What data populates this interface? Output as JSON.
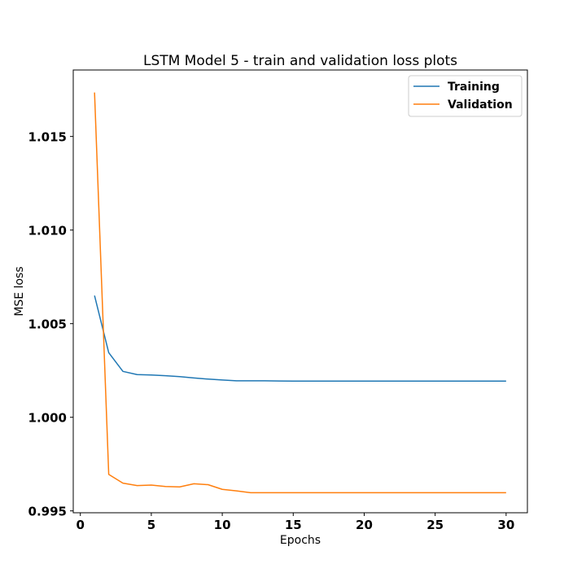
{
  "chart_data": {
    "type": "line",
    "title": "LSTM Model 5 - train and validation loss plots",
    "xlabel": "Epochs",
    "ylabel": "MSE loss",
    "xlim": [
      -0.5,
      31.5
    ],
    "ylim": [
      0.9949,
      1.01855
    ],
    "xticks": [
      0,
      5,
      10,
      15,
      20,
      25,
      30
    ],
    "yticks": [
      0.995,
      1.0,
      1.005,
      1.01,
      1.015
    ],
    "ytick_labels": [
      "0.995",
      "1.000",
      "1.005",
      "1.010",
      "1.015"
    ],
    "grid": false,
    "legend_position": "top-right",
    "x": [
      1,
      2,
      3,
      4,
      5,
      6,
      7,
      8,
      9,
      10,
      11,
      12,
      13,
      14,
      15,
      16,
      17,
      18,
      19,
      20,
      21,
      22,
      23,
      24,
      25,
      26,
      27,
      28,
      29,
      30
    ],
    "series": [
      {
        "name": "Training",
        "color": "#1f77b4",
        "values": [
          1.0065,
          1.00345,
          1.00245,
          1.00228,
          1.00226,
          1.00222,
          1.00217,
          1.0021,
          1.00204,
          1.00199,
          1.00195,
          1.00195,
          1.00195,
          1.00194,
          1.00193,
          1.00193,
          1.00193,
          1.00193,
          1.00193,
          1.00193,
          1.00193,
          1.00193,
          1.00193,
          1.00193,
          1.00193,
          1.00193,
          1.00193,
          1.00193,
          1.00193,
          1.00193
        ]
      },
      {
        "name": "Validation",
        "color": "#ff7f0e",
        "values": [
          1.01735,
          0.99695,
          0.99648,
          0.99635,
          0.99638,
          0.9963,
          0.99628,
          0.99645,
          0.9964,
          0.99615,
          0.99607,
          0.99597,
          0.99597,
          0.99597,
          0.99597,
          0.99597,
          0.99597,
          0.99597,
          0.99597,
          0.99597,
          0.99597,
          0.99597,
          0.99597,
          0.99597,
          0.99597,
          0.99597,
          0.99597,
          0.99597,
          0.99597,
          0.99597
        ]
      }
    ]
  }
}
